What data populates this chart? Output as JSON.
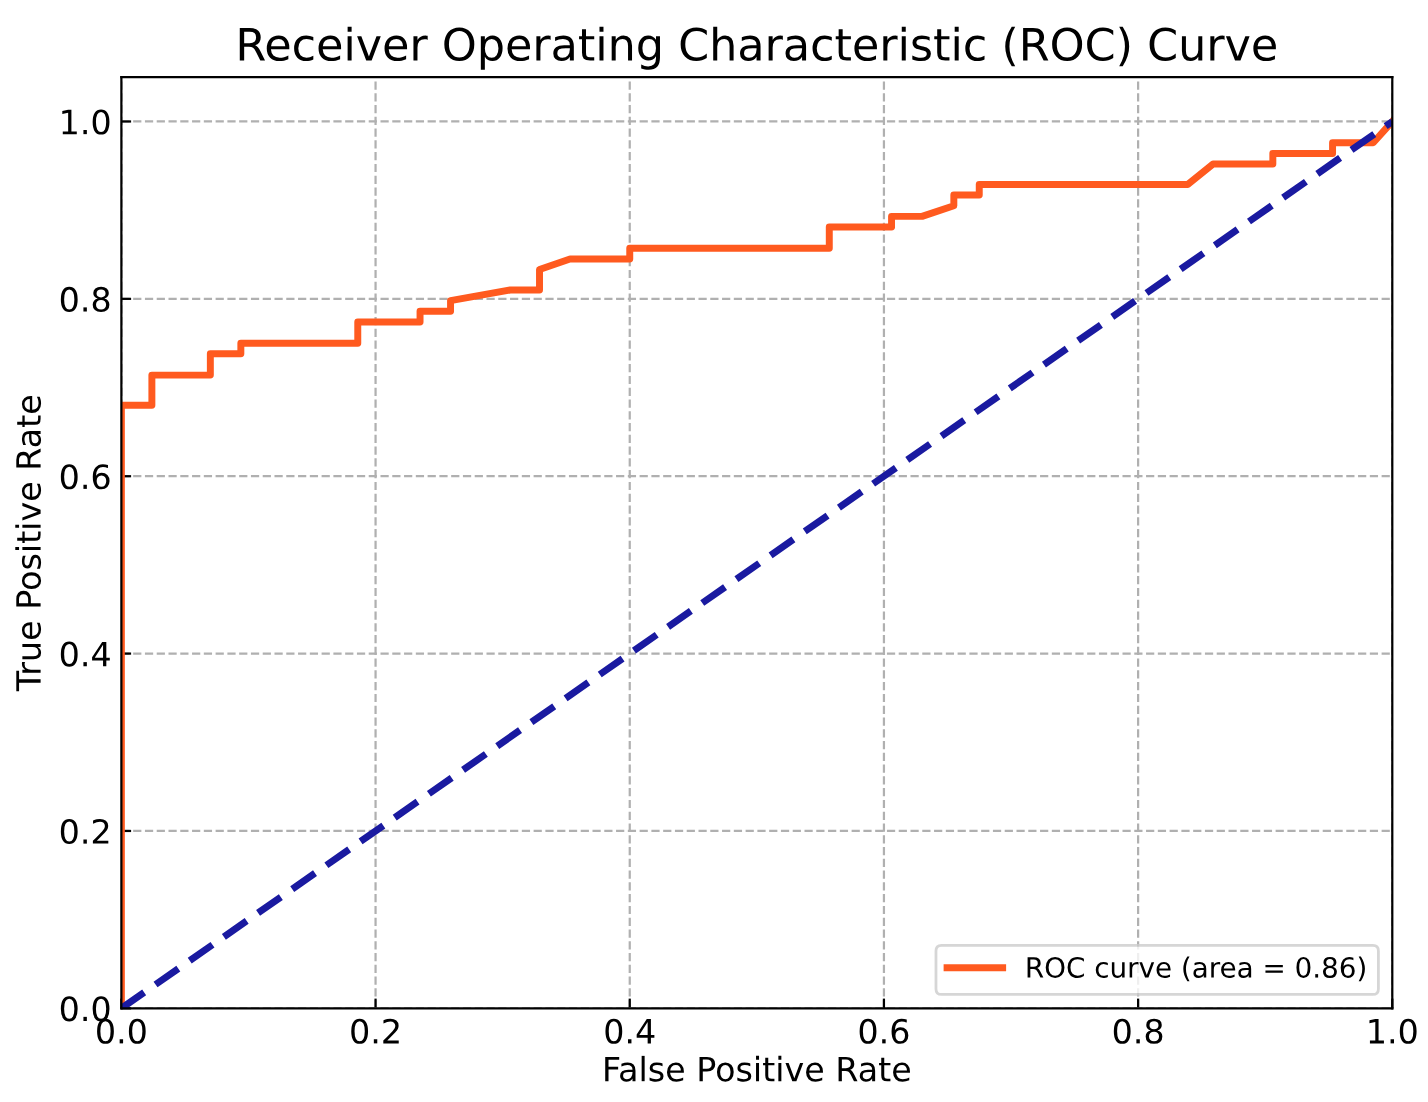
{
  "chart_data": {
    "type": "line",
    "title": "Receiver Operating Characteristic (ROC) Curve",
    "xlabel": "False Positive Rate",
    "ylabel": "True Positive Rate",
    "xlim": [
      0.0,
      1.0
    ],
    "ylim": [
      0.0,
      1.05
    ],
    "xticks": [
      {
        "value": 0,
        "label": "0.0"
      },
      0.2,
      0.4,
      0.6,
      0.8,
      {
        "value": 1,
        "label": "1.0"
      }
    ],
    "yticks": [
      {
        "value": 0,
        "label": "0.0"
      },
      0.2,
      0.4,
      0.6,
      0.8,
      {
        "value": 1,
        "label": "1.0"
      }
    ],
    "grid": true,
    "legend": "bottom right",
    "series": [
      {
        "name": "ROC curve (area = 0.86)",
        "color": "#ff5a1f",
        "line_style": "solid",
        "x": [
          0,
          0,
          0.024,
          0.024,
          0.07,
          0.07,
          0.094,
          0.094,
          0.186,
          0.186,
          0.235,
          0.235,
          0.259,
          0.259,
          0.306,
          0.329,
          0.329,
          0.353,
          0.4,
          0.4,
          0.557,
          0.557,
          0.606,
          0.606,
          0.63,
          0.655,
          0.655,
          0.675,
          0.675,
          0.839,
          0.859,
          0.906,
          0.906,
          0.953,
          0.953,
          0.985,
          1
        ],
        "values": [
          0,
          0.68,
          0.68,
          0.714,
          0.714,
          0.738,
          0.738,
          0.75,
          0.75,
          0.774,
          0.774,
          0.786,
          0.786,
          0.798,
          0.81,
          0.81,
          0.833,
          0.845,
          0.845,
          0.857,
          0.857,
          0.881,
          0.881,
          0.893,
          0.893,
          0.905,
          0.917,
          0.917,
          0.929,
          0.929,
          0.952,
          0.952,
          0.964,
          0.964,
          0.976,
          0.976,
          1
        ]
      },
      {
        "color": "#1a1aa0",
        "line_style": "dashed",
        "x": [
          0,
          1
        ],
        "values": [
          0,
          1
        ]
      }
    ]
  }
}
